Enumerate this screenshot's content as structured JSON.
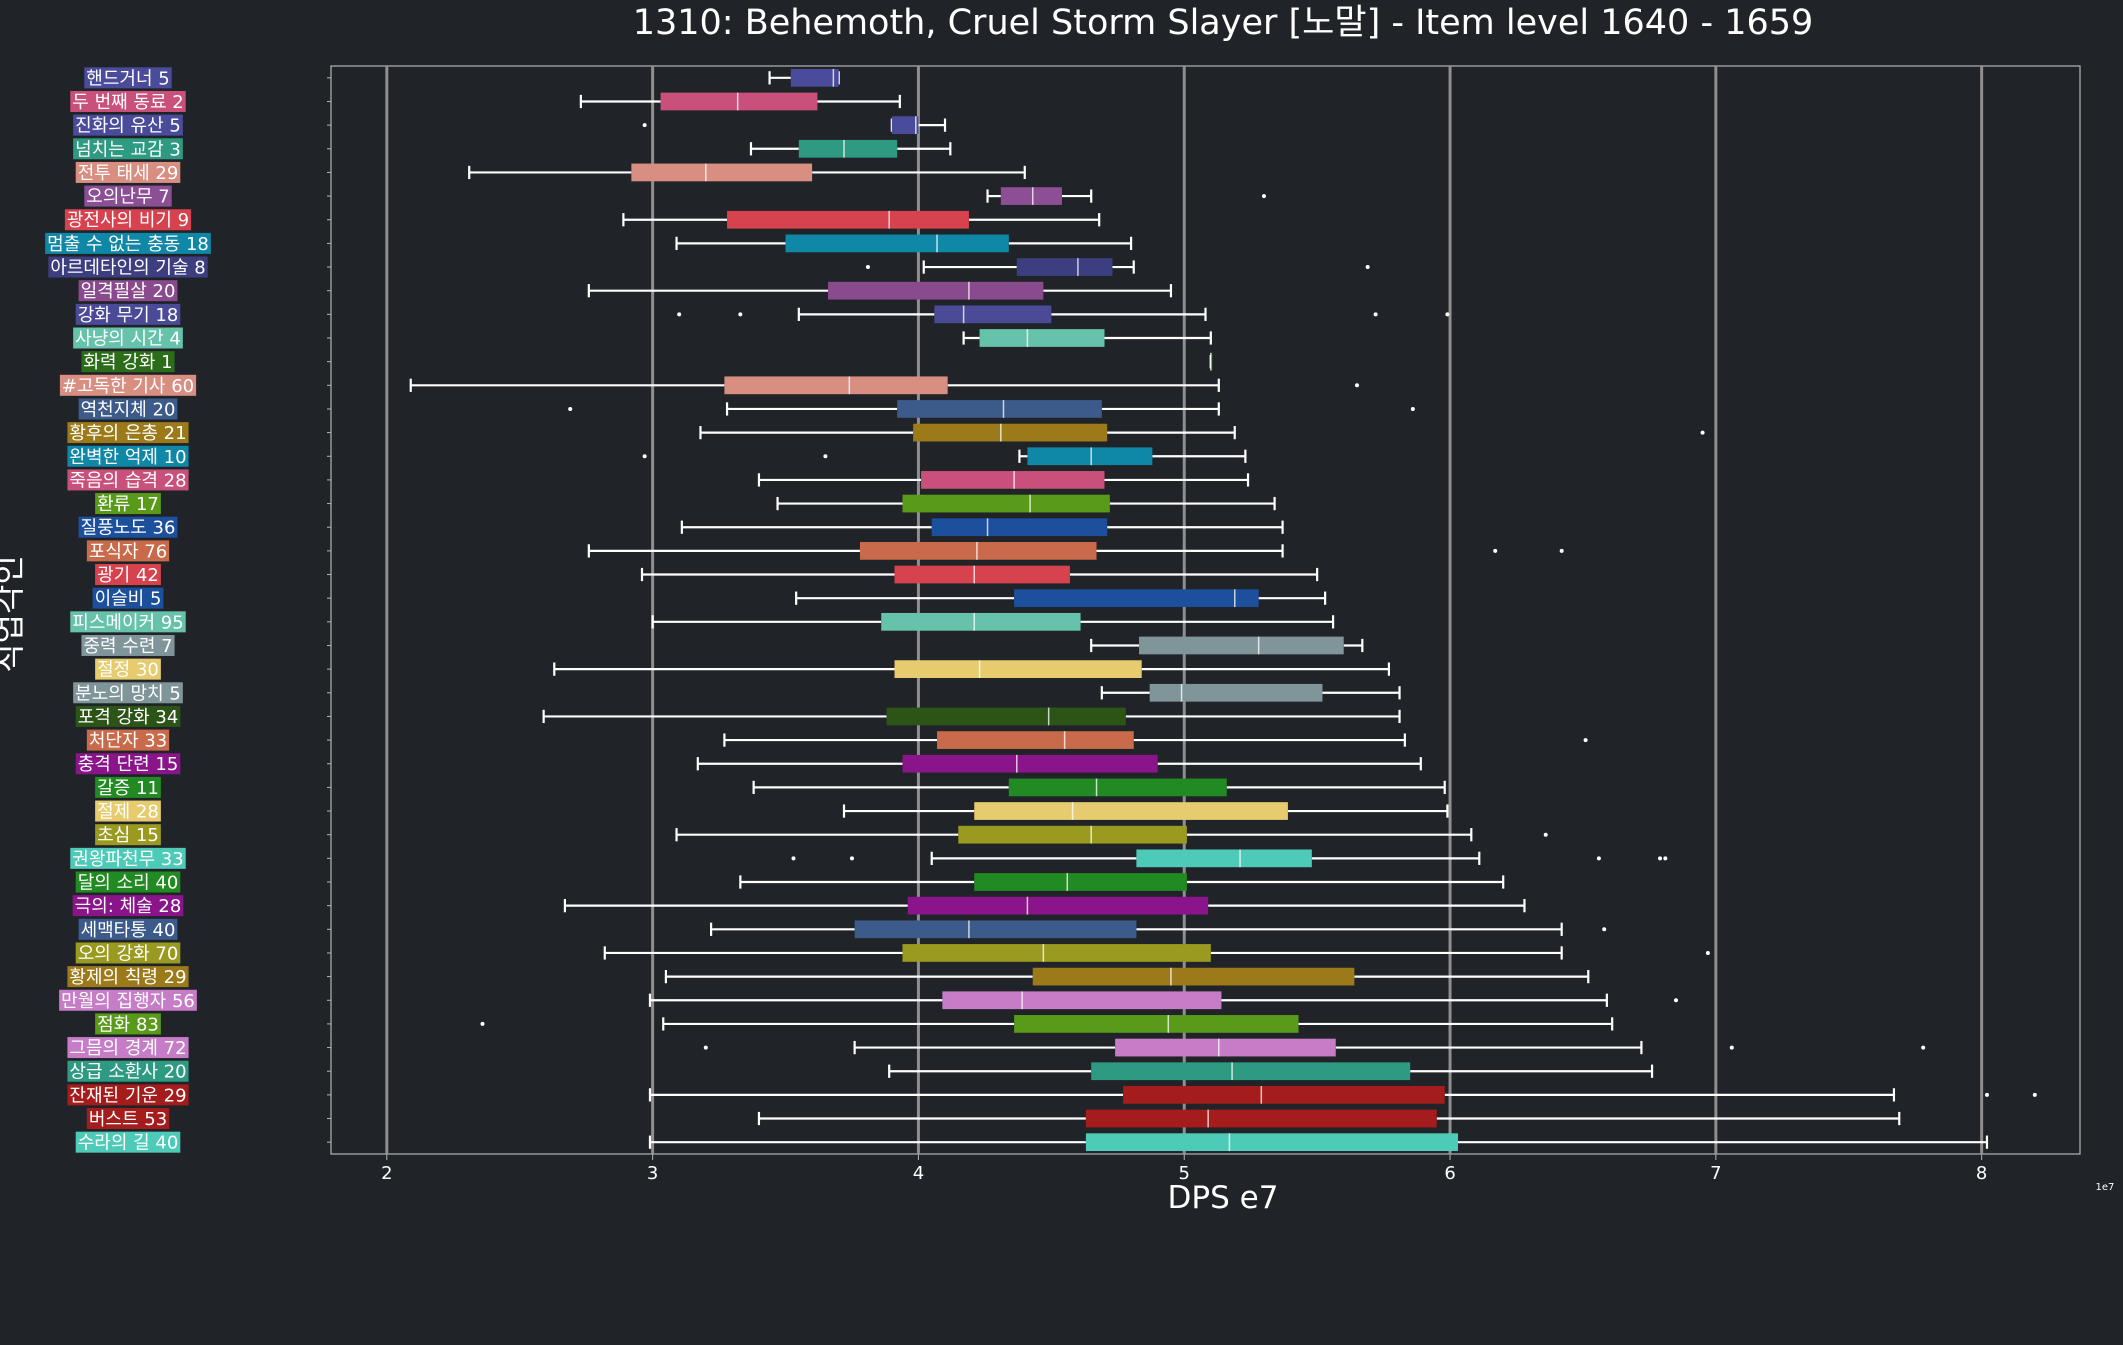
{
  "chart_data": {
    "type": "box",
    "orientation": "horizontal",
    "title": "1310: Behemoth, Cruel Storm Slayer [노말] - Item level 1640 - 1659",
    "xlabel": "DPS e7",
    "ylabel": "직업각인",
    "x_scale_note": "1e7",
    "xlim": [
      1.79,
      8.37
    ],
    "xticks": [
      2,
      3,
      4,
      5,
      6,
      7,
      8
    ],
    "grid": "vertical",
    "colors": {
      "background": "#202328",
      "axis": "#b4b4b4",
      "grid": "#8f8f8f",
      "whisker": "#ffffff"
    },
    "categories": [
      {
        "label": "핸드거너 5",
        "color": "#4b4b9b",
        "whislo": 3.44,
        "q1": 3.52,
        "median": 3.68,
        "q3": 3.7,
        "whishi": 3.7,
        "fliers": []
      },
      {
        "label": "두 번째 동료 2",
        "color": "#c9507a",
        "whislo": 2.73,
        "q1": 3.03,
        "median": 3.32,
        "q3": 3.62,
        "whishi": 3.93,
        "fliers": []
      },
      {
        "label": "진화의 유산 5",
        "color": "#4b4b9b",
        "whislo": 3.9,
        "q1": 3.9,
        "median": 3.99,
        "q3": 4.0,
        "whishi": 4.1,
        "fliers": [
          2.97
        ]
      },
      {
        "label": "넘치는 교감 3",
        "color": "#2f9a82",
        "whislo": 3.37,
        "q1": 3.55,
        "median": 3.72,
        "q3": 3.92,
        "whishi": 4.12,
        "fliers": []
      },
      {
        "label": "전투 태세 29",
        "color": "#d98e82",
        "whislo": 2.31,
        "q1": 2.92,
        "median": 3.2,
        "q3": 3.6,
        "whishi": 4.4,
        "fliers": []
      },
      {
        "label": "오의난무 7",
        "color": "#8c4e95",
        "whislo": 4.26,
        "q1": 4.31,
        "median": 4.43,
        "q3": 4.54,
        "whishi": 4.65,
        "fliers": [
          5.3
        ]
      },
      {
        "label": "광전사의 비기 9",
        "color": "#d6424e",
        "whislo": 2.89,
        "q1": 3.28,
        "median": 3.89,
        "q3": 4.19,
        "whishi": 4.68,
        "fliers": []
      },
      {
        "label": "멈출 수 없는 충동 18",
        "color": "#0f87a6",
        "whislo": 3.09,
        "q1": 3.5,
        "median": 4.07,
        "q3": 4.34,
        "whishi": 4.8,
        "fliers": []
      },
      {
        "label": "아르데타인의 기술 8",
        "color": "#3c3e80",
        "whislo": 4.02,
        "q1": 4.37,
        "median": 4.6,
        "q3": 4.73,
        "whishi": 4.81,
        "fliers": [
          3.81,
          5.69
        ]
      },
      {
        "label": "일격필살 20",
        "color": "#8a4a8e",
        "whislo": 2.76,
        "q1": 3.66,
        "median": 4.19,
        "q3": 4.47,
        "whishi": 4.95,
        "fliers": []
      },
      {
        "label": "강화 무기 18",
        "color": "#4a4a96",
        "whislo": 3.55,
        "q1": 4.06,
        "median": 4.17,
        "q3": 4.5,
        "whishi": 5.08,
        "fliers": [
          3.1,
          3.33,
          5.72,
          5.99
        ]
      },
      {
        "label": "사냥의 시간 4",
        "color": "#67c2ab",
        "whislo": 4.17,
        "q1": 4.23,
        "median": 4.41,
        "q3": 4.7,
        "whishi": 5.1,
        "fliers": []
      },
      {
        "label": "화력 강화 1",
        "color": "#2c6d1a",
        "whislo": 5.1,
        "q1": 5.1,
        "median": 5.1,
        "q3": 5.1,
        "whishi": 5.1,
        "fliers": []
      },
      {
        "label": "#고독한 기사 60",
        "color": "#d98e82",
        "whislo": 2.09,
        "q1": 3.27,
        "median": 3.74,
        "q3": 4.11,
        "whishi": 5.13,
        "fliers": [
          5.65
        ]
      },
      {
        "label": "역천지체 20",
        "color": "#3c5a8a",
        "whislo": 3.28,
        "q1": 3.92,
        "median": 4.32,
        "q3": 4.69,
        "whishi": 5.13,
        "fliers": [
          2.69,
          5.86
        ]
      },
      {
        "label": "황후의 은총 21",
        "color": "#9c7a1a",
        "whislo": 3.18,
        "q1": 3.98,
        "median": 4.31,
        "q3": 4.71,
        "whishi": 5.19,
        "fliers": [
          6.95
        ]
      },
      {
        "label": "완벽한 억제 10",
        "color": "#0f87a6",
        "whislo": 4.38,
        "q1": 4.41,
        "median": 4.65,
        "q3": 4.88,
        "whishi": 5.23,
        "fliers": [
          2.97,
          3.65
        ]
      },
      {
        "label": "죽음의 습격 28",
        "color": "#c9507a",
        "whislo": 3.4,
        "q1": 4.01,
        "median": 4.36,
        "q3": 4.7,
        "whishi": 5.24,
        "fliers": []
      },
      {
        "label": "환류 17",
        "color": "#5a9a1a",
        "whislo": 3.47,
        "q1": 3.94,
        "median": 4.42,
        "q3": 4.72,
        "whishi": 5.34,
        "fliers": []
      },
      {
        "label": "질풍노도 36",
        "color": "#1c4f9c",
        "whislo": 3.11,
        "q1": 4.05,
        "median": 4.26,
        "q3": 4.71,
        "whishi": 5.37,
        "fliers": []
      },
      {
        "label": "포식자 76",
        "color": "#c96b4a",
        "whislo": 2.76,
        "q1": 3.78,
        "median": 4.22,
        "q3": 4.67,
        "whishi": 5.37,
        "fliers": [
          6.17,
          6.42
        ]
      },
      {
        "label": "광기 42",
        "color": "#d6424e",
        "whislo": 2.96,
        "q1": 3.91,
        "median": 4.21,
        "q3": 4.57,
        "whishi": 5.5,
        "fliers": []
      },
      {
        "label": "이슬비 5",
        "color": "#1c4f9c",
        "whislo": 3.54,
        "q1": 4.36,
        "median": 5.19,
        "q3": 5.28,
        "whishi": 5.53,
        "fliers": []
      },
      {
        "label": "피스메이커 95",
        "color": "#67c2ab",
        "whislo": 3.0,
        "q1": 3.86,
        "median": 4.21,
        "q3": 4.61,
        "whishi": 5.56,
        "fliers": []
      },
      {
        "label": "중력 수련 7",
        "color": "#7f9599",
        "whislo": 4.65,
        "q1": 4.83,
        "median": 5.28,
        "q3": 5.6,
        "whishi": 5.67,
        "fliers": []
      },
      {
        "label": "절정 30",
        "color": "#e6cc6e",
        "whislo": 2.63,
        "q1": 3.91,
        "median": 4.23,
        "q3": 4.84,
        "whishi": 5.77,
        "fliers": []
      },
      {
        "label": "분노의 망치 5",
        "color": "#7f9599",
        "whislo": 4.69,
        "q1": 4.87,
        "median": 4.99,
        "q3": 5.52,
        "whishi": 5.81,
        "fliers": []
      },
      {
        "label": "포격 강화 34",
        "color": "#2c5416",
        "whislo": 2.59,
        "q1": 3.88,
        "median": 4.49,
        "q3": 4.78,
        "whishi": 5.81,
        "fliers": []
      },
      {
        "label": "처단자 33",
        "color": "#c96b4a",
        "whislo": 3.27,
        "q1": 4.07,
        "median": 4.55,
        "q3": 4.81,
        "whishi": 5.83,
        "fliers": [
          6.51
        ]
      },
      {
        "label": "충격 단련 15",
        "color": "#8a148a",
        "whislo": 3.17,
        "q1": 3.94,
        "median": 4.37,
        "q3": 4.9,
        "whishi": 5.89,
        "fliers": []
      },
      {
        "label": "갈증 11",
        "color": "#228a22",
        "whislo": 3.38,
        "q1": 4.34,
        "median": 4.67,
        "q3": 5.16,
        "whishi": 5.98,
        "fliers": []
      },
      {
        "label": "절제 28",
        "color": "#e6cc6e",
        "whislo": 3.72,
        "q1": 4.21,
        "median": 4.58,
        "q3": 5.39,
        "whishi": 5.99,
        "fliers": []
      },
      {
        "label": "초심 15",
        "color": "#9a9a20",
        "whislo": 3.09,
        "q1": 4.15,
        "median": 4.65,
        "q3": 5.01,
        "whishi": 6.08,
        "fliers": [
          6.36
        ]
      },
      {
        "label": "권왕파천무 33",
        "color": "#4ecbb8",
        "whislo": 4.05,
        "q1": 4.82,
        "median": 5.21,
        "q3": 5.48,
        "whishi": 6.11,
        "fliers": [
          3.53,
          3.75,
          6.56,
          6.79,
          6.81
        ]
      },
      {
        "label": "달의 소리 40",
        "color": "#228a22",
        "whislo": 3.33,
        "q1": 4.21,
        "median": 4.56,
        "q3": 5.01,
        "whishi": 6.2,
        "fliers": []
      },
      {
        "label": "극의: 체술 28",
        "color": "#8a148a",
        "whislo": 2.67,
        "q1": 3.96,
        "median": 4.41,
        "q3": 5.09,
        "whishi": 6.28,
        "fliers": []
      },
      {
        "label": "세맥타통 40",
        "color": "#3c5a8a",
        "whislo": 3.22,
        "q1": 3.76,
        "median": 4.19,
        "q3": 4.82,
        "whishi": 6.42,
        "fliers": [
          6.58
        ]
      },
      {
        "label": "오의 강화 70",
        "color": "#9a9a20",
        "whislo": 2.82,
        "q1": 3.94,
        "median": 4.47,
        "q3": 5.1,
        "whishi": 6.42,
        "fliers": [
          6.97
        ]
      },
      {
        "label": "황제의 칙령 29",
        "color": "#9c7a1a",
        "whislo": 3.05,
        "q1": 4.43,
        "median": 4.95,
        "q3": 5.64,
        "whishi": 6.52,
        "fliers": []
      },
      {
        "label": "만월의 집행자 56",
        "color": "#c77cc7",
        "whislo": 2.99,
        "q1": 4.09,
        "median": 4.39,
        "q3": 5.14,
        "whishi": 6.59,
        "fliers": [
          6.85
        ]
      },
      {
        "label": "점화 83",
        "color": "#5a9a1a",
        "whislo": 3.04,
        "q1": 4.36,
        "median": 4.94,
        "q3": 5.43,
        "whishi": 6.61,
        "fliers": [
          2.36
        ]
      },
      {
        "label": "그믐의 경계 72",
        "color": "#c77cc7",
        "whislo": 3.76,
        "q1": 4.74,
        "median": 5.13,
        "q3": 5.57,
        "whishi": 6.72,
        "fliers": [
          3.2,
          7.06,
          7.78
        ]
      },
      {
        "label": "상급 소환사 20",
        "color": "#2f9a82",
        "whislo": 3.89,
        "q1": 4.65,
        "median": 5.18,
        "q3": 5.85,
        "whishi": 6.76,
        "fliers": []
      },
      {
        "label": "잔재된 기운 29",
        "color": "#a41c1c",
        "whislo": 2.99,
        "q1": 4.77,
        "median": 5.29,
        "q3": 5.98,
        "whishi": 7.67,
        "fliers": [
          8.02,
          8.2
        ]
      },
      {
        "label": "버스트 53",
        "color": "#a41c1c",
        "whislo": 3.4,
        "q1": 4.63,
        "median": 5.09,
        "q3": 5.95,
        "whishi": 7.69,
        "fliers": []
      },
      {
        "label": "수라의 길 40",
        "color": "#4ecbb8",
        "whislo": 2.99,
        "q1": 4.63,
        "median": 5.17,
        "q3": 6.03,
        "whishi": 8.02,
        "fliers": []
      }
    ]
  }
}
